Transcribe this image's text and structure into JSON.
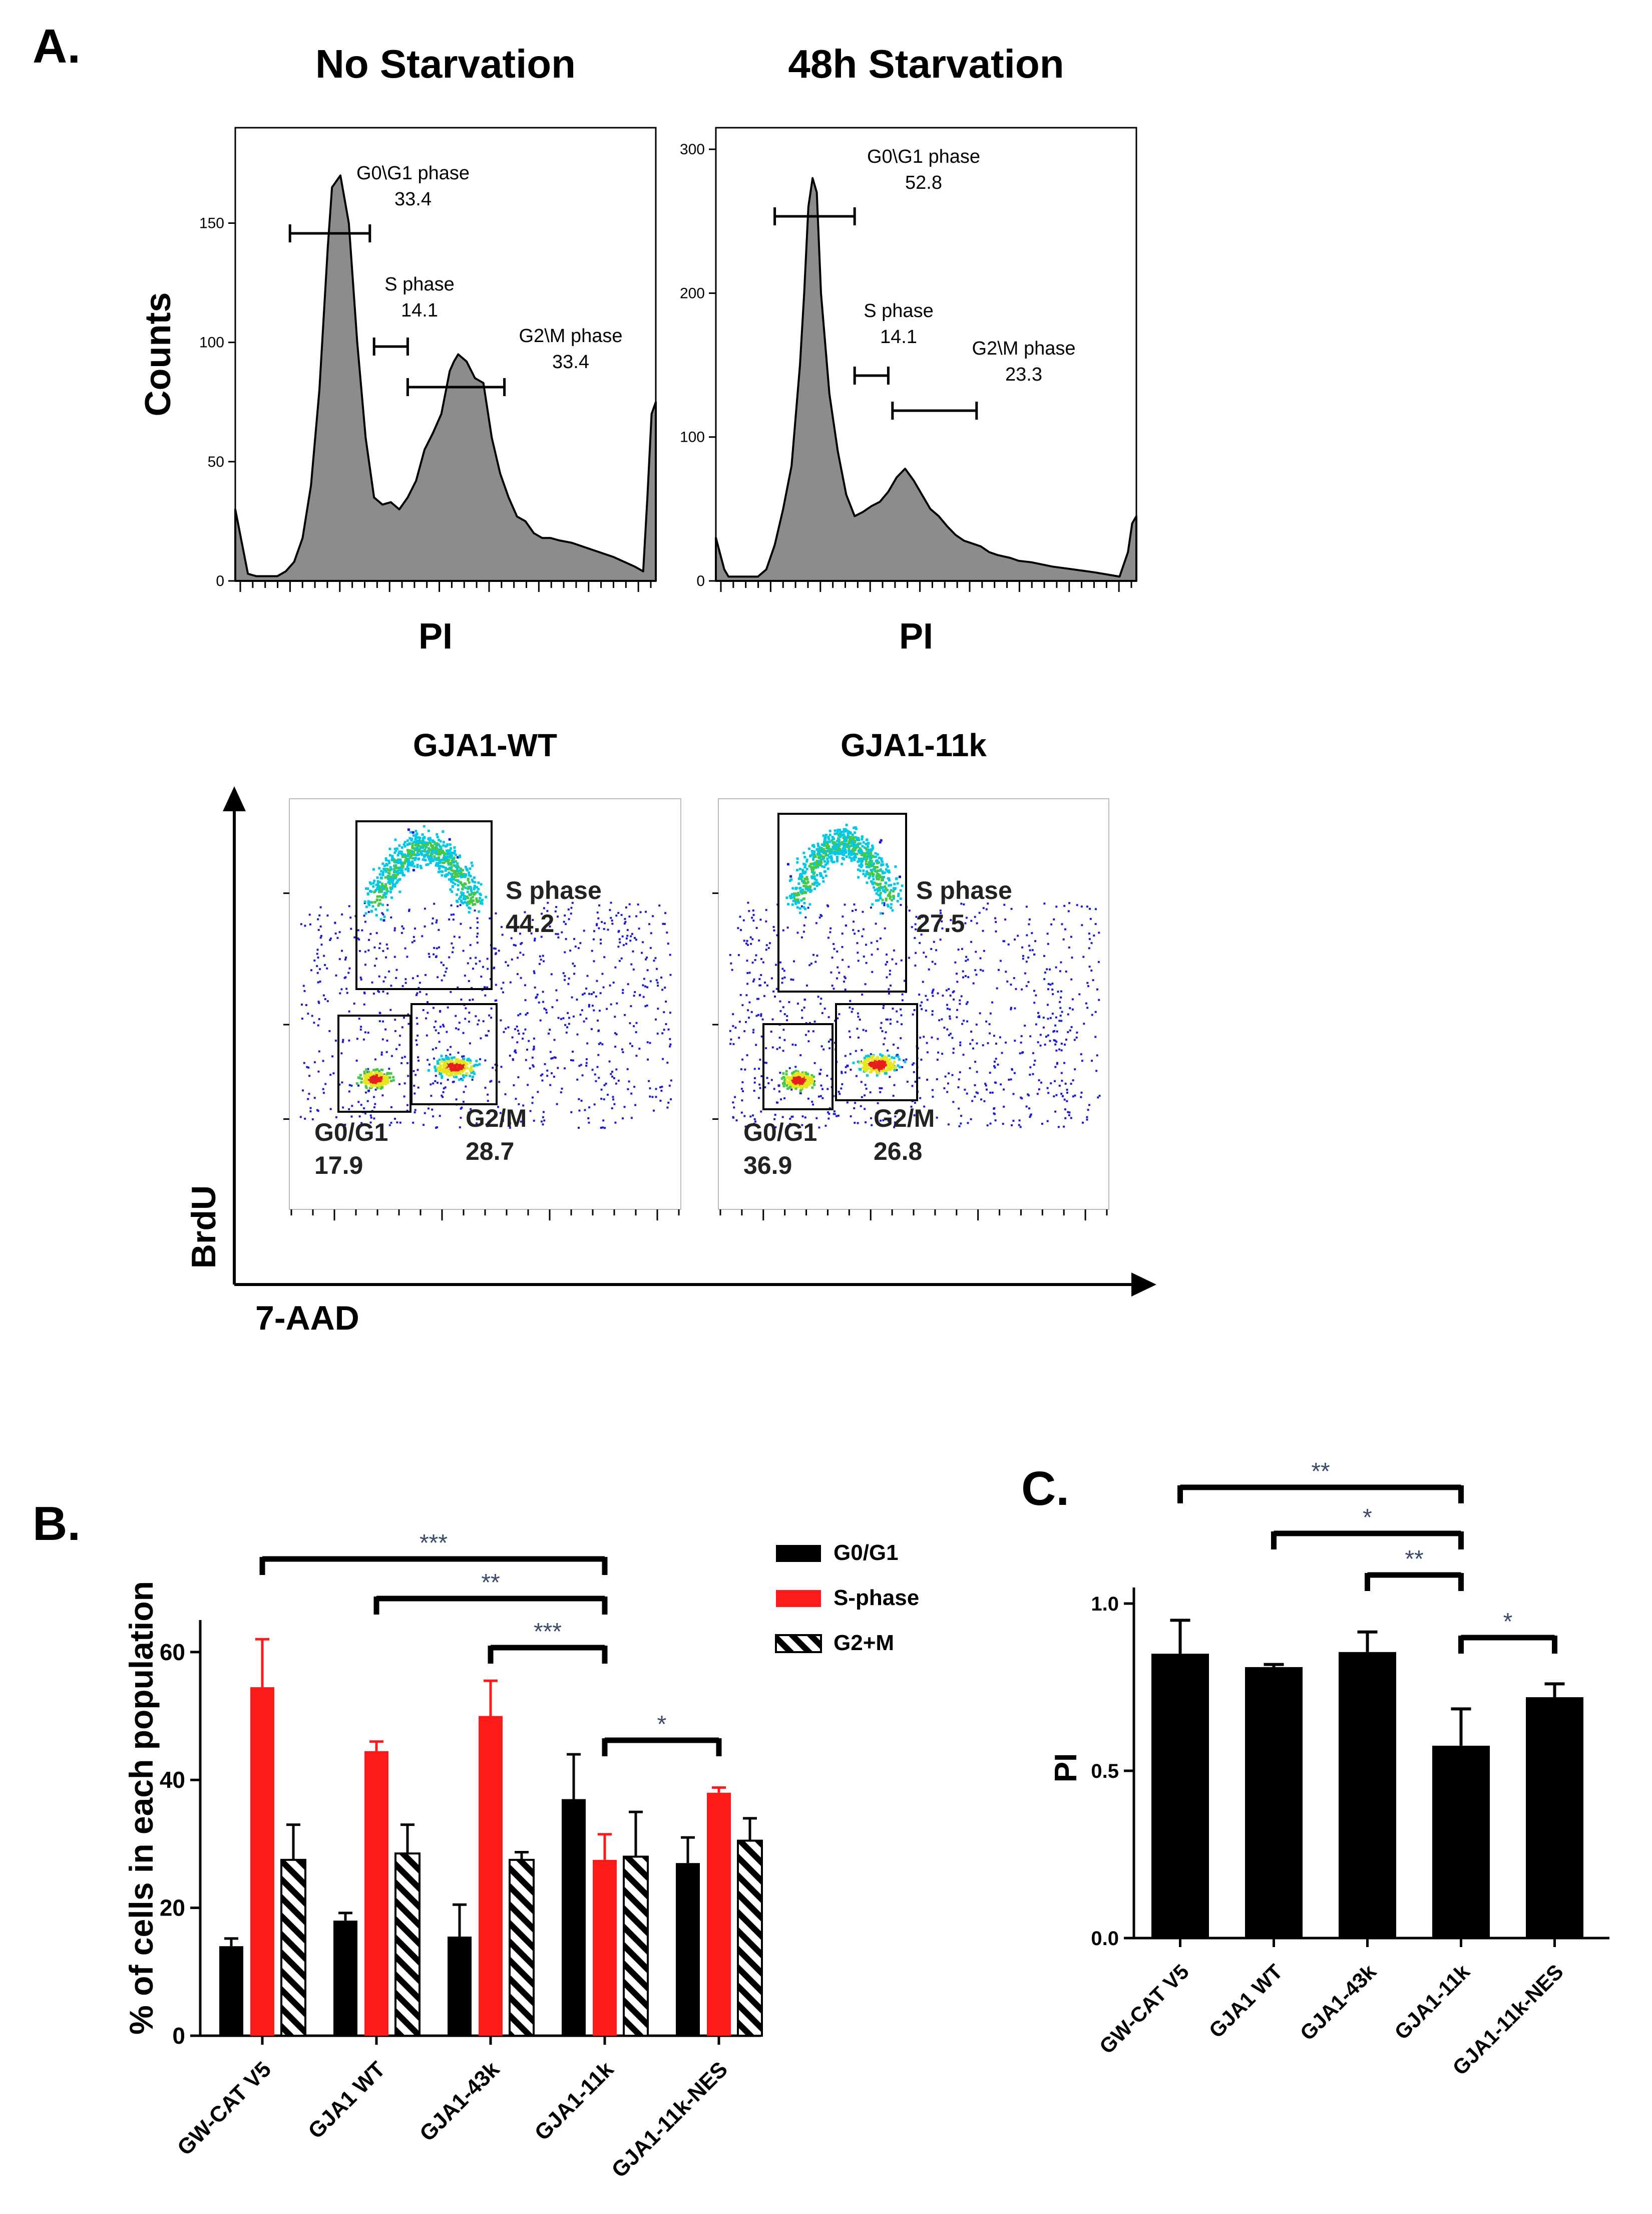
{
  "panel_labels": {
    "a": "A.",
    "b": "B.",
    "c": "C."
  },
  "colors": {
    "black": "#000000",
    "red": "#ff1a1a",
    "hist_fill": "#8c8c8c",
    "star": "#3d4b6b",
    "dot_blue": "#1a1ad6",
    "dot_cyan": "#00c8e6",
    "dot_green": "#46c846",
    "dot_yellow": "#e6e61e",
    "dot_red": "#e61e1e"
  },
  "chart_data": [
    {
      "id": "hist-no-starvation",
      "type": "area",
      "title": "No Starvation",
      "xlabel": "PI",
      "ylabel": "Counts",
      "ylim": [
        0,
        190
      ],
      "yticks": [
        "0",
        "50",
        "100",
        "150"
      ],
      "x": [
        0,
        2,
        3,
        5,
        7,
        10,
        12,
        14,
        16,
        18,
        20,
        22,
        23,
        25,
        27,
        29,
        31,
        33,
        35,
        37,
        39,
        41,
        43,
        45,
        47,
        49,
        51,
        52,
        53,
        55,
        57,
        59,
        61,
        63,
        65,
        67,
        69,
        71,
        73,
        75,
        77,
        80,
        85,
        90,
        95,
        97,
        98,
        99,
        100
      ],
      "values": [
        30,
        12,
        3,
        2,
        2,
        2,
        4,
        8,
        18,
        40,
        80,
        140,
        165,
        170,
        150,
        100,
        60,
        35,
        32,
        33,
        30,
        35,
        42,
        55,
        62,
        70,
        88,
        92,
        95,
        92,
        85,
        83,
        60,
        45,
        35,
        27,
        25,
        20,
        18,
        18,
        17,
        16,
        13,
        10,
        6,
        4,
        35,
        70,
        75
      ],
      "gates": [
        {
          "label": "G0\\G1 phase",
          "value": "33.4",
          "range": [
            13,
            32
          ]
        },
        {
          "label": "S phase",
          "value": "14.1",
          "range": [
            33,
            41
          ]
        },
        {
          "label": "G2\\M phase",
          "value": "33.4",
          "range": [
            41,
            64
          ]
        }
      ]
    },
    {
      "id": "hist-48h-starvation",
      "type": "area",
      "title": "48h Starvation",
      "xlabel": "PI",
      "ylabel": "",
      "ylim": [
        0,
        315
      ],
      "yticks": [
        "0",
        "100",
        "200",
        "300"
      ],
      "x": [
        0,
        2,
        3,
        5,
        8,
        10,
        12,
        14,
        16,
        18,
        20,
        21,
        22,
        23,
        24,
        25,
        27,
        29,
        31,
        33,
        35,
        37,
        39,
        41,
        43,
        45,
        47,
        49,
        51,
        53,
        55,
        57,
        59,
        61,
        63,
        65,
        67,
        70,
        72,
        75,
        80,
        85,
        90,
        94,
        96,
        98,
        99,
        100
      ],
      "values": [
        30,
        8,
        3,
        3,
        3,
        3,
        8,
        25,
        50,
        80,
        150,
        200,
        260,
        280,
        270,
        200,
        130,
        90,
        60,
        45,
        48,
        52,
        55,
        62,
        72,
        78,
        70,
        60,
        50,
        45,
        38,
        32,
        28,
        26,
        24,
        20,
        18,
        16,
        14,
        13,
        10,
        8,
        6,
        4,
        3,
        20,
        40,
        45
      ],
      "gates": [
        {
          "label": "G0\\G1 phase",
          "value": "52.8",
          "range": [
            14,
            33
          ]
        },
        {
          "label": "S phase",
          "value": "14.1",
          "range": [
            33,
            41
          ]
        },
        {
          "label": "G2\\M phase",
          "value": "23.3",
          "range": [
            42,
            62
          ]
        }
      ]
    },
    {
      "id": "scatter-gja1-wt",
      "type": "scatter",
      "title": "GJA1-WT",
      "xlabel": "7-AAD",
      "ylabel": "BrdU",
      "gates": [
        {
          "label": "S phase",
          "value": "44.2"
        },
        {
          "label": "G0/G1",
          "value": "17.9"
        },
        {
          "label": "G2/M",
          "value": "28.7"
        }
      ]
    },
    {
      "id": "scatter-gja1-11k",
      "type": "scatter",
      "title": "GJA1-11k",
      "xlabel": "7-AAD",
      "ylabel": "BrdU",
      "gates": [
        {
          "label": "S phase",
          "value": "27.5"
        },
        {
          "label": "G0/G1",
          "value": "36.9"
        },
        {
          "label": "G2/M",
          "value": "26.8"
        }
      ]
    },
    {
      "id": "bar-b",
      "type": "bar",
      "title": "",
      "xlabel": "",
      "ylabel": "% of cells in each population",
      "ylim": [
        0,
        65
      ],
      "yticks": [
        "0",
        "20",
        "40",
        "60"
      ],
      "categories": [
        "GW-CAT V5",
        "GJA1 WT",
        "GJA1-43k",
        "GJA1-11k",
        "GJA1-11k-NES"
      ],
      "series": [
        {
          "name": "G0/G1",
          "values": [
            14,
            18,
            15.5,
            37,
            27
          ],
          "errors": [
            1.2,
            1.2,
            5,
            7,
            4
          ]
        },
        {
          "name": "S-phase",
          "values": [
            54.5,
            44.5,
            50,
            27.5,
            38
          ],
          "errors": [
            7.5,
            1.5,
            5.5,
            4,
            0.8
          ]
        },
        {
          "name": "G2+M",
          "values": [
            27.5,
            28.5,
            27.5,
            28,
            30.5
          ],
          "errors": [
            5.5,
            4.5,
            1.2,
            7,
            3.5
          ]
        }
      ],
      "significance": [
        {
          "from": 0,
          "to": 3,
          "label": "***"
        },
        {
          "from": 1,
          "to": 3,
          "label": "**"
        },
        {
          "from": 2,
          "to": 3,
          "label": "***"
        },
        {
          "from": 3,
          "to": 4,
          "label": "*"
        }
      ]
    },
    {
      "id": "bar-c",
      "type": "bar",
      "title": "",
      "xlabel": "",
      "ylabel": "PI",
      "ylim": [
        0,
        1.0
      ],
      "yticks": [
        "0.0",
        "0.5",
        "1.0"
      ],
      "categories": [
        "GW-CAT V5",
        "GJA1 WT",
        "GJA1-43k",
        "GJA1-11k",
        "GJA1-11k-NES"
      ],
      "values": [
        0.85,
        0.81,
        0.855,
        0.575,
        0.72
      ],
      "errors": [
        0.1,
        0.008,
        0.06,
        0.11,
        0.04
      ],
      "significance": [
        {
          "from": 0,
          "to": 3,
          "label": "**"
        },
        {
          "from": 1,
          "to": 3,
          "label": "*"
        },
        {
          "from": 2,
          "to": 3,
          "label": "**"
        },
        {
          "from": 3,
          "to": 4,
          "label": "*"
        }
      ]
    }
  ]
}
